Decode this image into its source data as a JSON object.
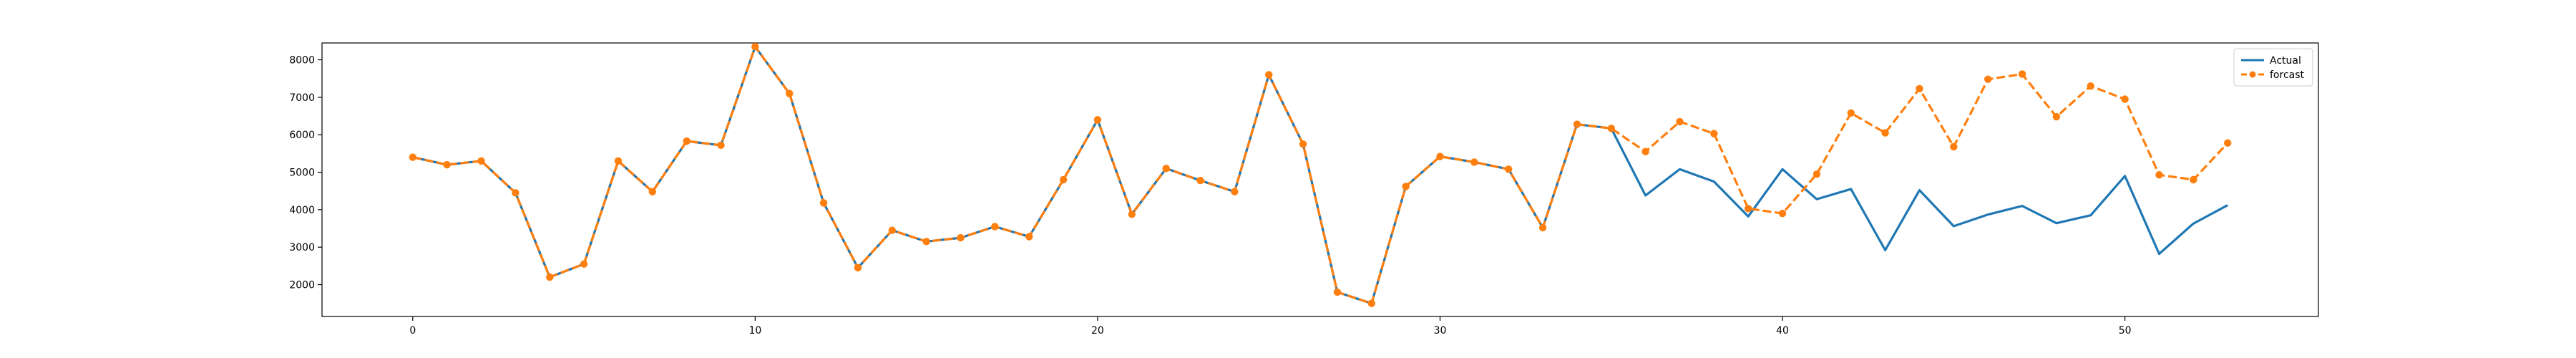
{
  "chart_data": {
    "type": "line",
    "title": "",
    "xlabel": "",
    "ylabel": "",
    "xlim": [
      -2.65,
      55.65
    ],
    "ylim": [
      1150,
      8450
    ],
    "x_ticks": [
      0,
      10,
      20,
      30,
      40,
      50
    ],
    "y_ticks": [
      2000,
      3000,
      4000,
      5000,
      6000,
      7000,
      8000
    ],
    "grid": false,
    "legend_position": "top-right",
    "series": [
      {
        "name": "Actual",
        "color": "#1f77b4",
        "style": "solid",
        "marker": "none",
        "x": [
          0,
          1,
          2,
          3,
          4,
          5,
          6,
          7,
          8,
          9,
          10,
          11,
          12,
          13,
          14,
          15,
          16,
          17,
          18,
          19,
          20,
          21,
          22,
          23,
          24,
          25,
          26,
          27,
          28,
          29,
          30,
          31,
          32,
          33,
          34,
          35,
          36,
          37,
          38,
          39,
          40,
          41,
          42,
          43,
          44,
          45,
          46,
          47,
          48,
          49,
          50,
          51,
          52,
          53
        ],
        "y": [
          5400,
          5200,
          5300,
          4450,
          2200,
          2550,
          5300,
          4480,
          5830,
          5720,
          8350,
          7100,
          4180,
          2450,
          3450,
          3150,
          3250,
          3550,
          3280,
          4800,
          6400,
          3880,
          5100,
          4780,
          4480,
          7600,
          5750,
          1800,
          1500,
          4620,
          5420,
          5270,
          5080,
          3520,
          6280,
          6170,
          4380,
          5080,
          4750,
          3820,
          5080,
          4280,
          4550,
          2920,
          4520,
          3560,
          3870,
          4100,
          3640,
          3850,
          4900,
          2820,
          3630,
          4120
        ]
      },
      {
        "name": "forcast",
        "color": "#ff7f0e",
        "style": "dashed",
        "marker": "circle",
        "x": [
          0,
          1,
          2,
          3,
          4,
          5,
          6,
          7,
          8,
          9,
          10,
          11,
          12,
          13,
          14,
          15,
          16,
          17,
          18,
          19,
          20,
          21,
          22,
          23,
          24,
          25,
          26,
          27,
          28,
          29,
          30,
          31,
          32,
          33,
          34,
          35,
          36,
          37,
          38,
          39,
          40,
          41,
          42,
          43,
          44,
          45,
          46,
          47,
          48,
          49,
          50,
          51,
          52,
          53
        ],
        "y": [
          5400,
          5200,
          5300,
          4450,
          2200,
          2550,
          5300,
          4480,
          5830,
          5720,
          8350,
          7100,
          4180,
          2450,
          3450,
          3150,
          3250,
          3550,
          3280,
          4800,
          6400,
          3880,
          5100,
          4780,
          4480,
          7600,
          5750,
          1800,
          1500,
          4620,
          5420,
          5270,
          5080,
          3520,
          6280,
          6170,
          5550,
          6350,
          6030,
          4030,
          3900,
          4950,
          6580,
          6050,
          7230,
          5680,
          7480,
          7620,
          6480,
          7300,
          6950,
          4930,
          4800,
          5780
        ]
      }
    ]
  }
}
